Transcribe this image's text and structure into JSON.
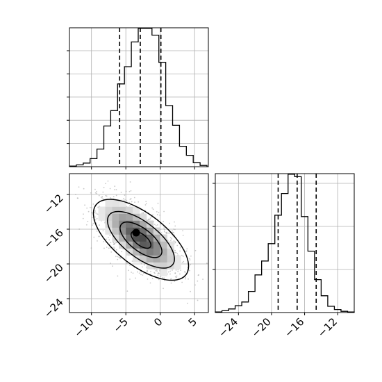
{
  "chart_data": {
    "type": "corner",
    "panels": [
      {
        "id": "hist-x",
        "type": "histogram",
        "x_range": [
          -13.2,
          7.0
        ],
        "y_max": 1.0,
        "bins_edges_start": -13.2,
        "bin_width": 1.0,
        "counts": [
          0.004,
          0.013,
          0.026,
          0.058,
          0.127,
          0.293,
          0.404,
          0.596,
          0.72,
          0.898,
          0.996,
          0.996,
          0.947,
          0.751,
          0.44,
          0.298,
          0.147,
          0.082,
          0.029,
          0.009
        ],
        "quantiles": [
          -5.9,
          -2.9,
          0.1
        ],
        "grid": true
      },
      {
        "id": "joint",
        "type": "2d-density",
        "x_range": [
          -13.2,
          7.0
        ],
        "y_range": [
          -25.6,
          -9.6
        ],
        "center": [
          -3.0,
          -16.9
        ],
        "x_ticks": [
          -10,
          -5,
          0,
          5
        ],
        "x_tick_labels": [
          "−10",
          "−5",
          "0",
          "5"
        ],
        "y_ticks": [
          -12,
          -16,
          -20,
          -24
        ],
        "y_tick_labels": [
          "−12",
          "−16",
          "−20",
          "−24"
        ],
        "grid": true
      },
      {
        "id": "hist-y",
        "type": "histogram",
        "x_range": [
          -26.8,
          -10.0
        ],
        "y_max": 1.0,
        "bins_edges_start": -26.8,
        "bin_width": 0.8,
        "counts": [
          0.004,
          0.013,
          0.026,
          0.049,
          0.076,
          0.152,
          0.271,
          0.371,
          0.496,
          0.701,
          0.857,
          0.996,
          0.978,
          0.691,
          0.442,
          0.237,
          0.121,
          0.045,
          0.022,
          0.009,
          0.004
        ],
        "quantiles": [
          -19.2,
          -16.9,
          -14.6
        ],
        "x_ticks": [
          -24,
          -20,
          -16,
          -12
        ],
        "x_tick_labels": [
          "−24",
          "−20",
          "−16",
          "−12"
        ],
        "grid": true
      }
    ]
  }
}
